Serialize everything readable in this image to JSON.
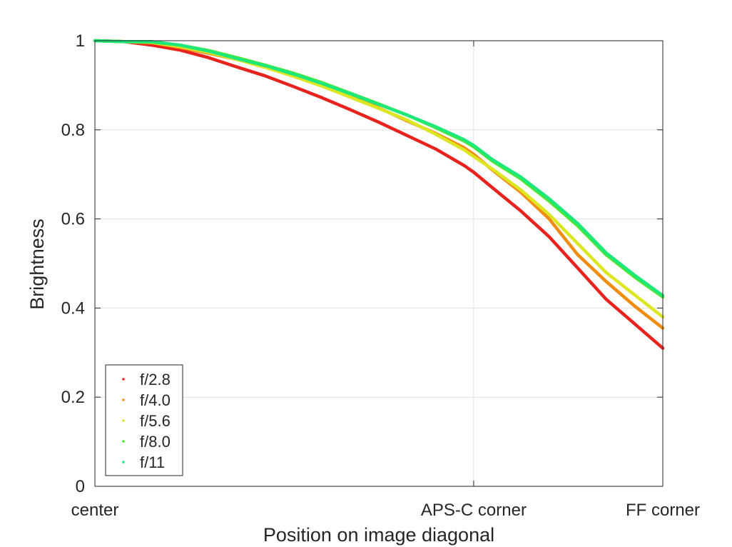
{
  "chart_data": {
    "type": "scatter",
    "title": "",
    "xlabel": "Position on image diagonal",
    "ylabel": "Brightness",
    "xlim": [
      0,
      1
    ],
    "ylim": [
      0,
      1
    ],
    "x_ticks": [
      {
        "value": 0,
        "label": "center"
      },
      {
        "value": 0.667,
        "label": "APS-C corner"
      },
      {
        "value": 1,
        "label": "FF corner"
      }
    ],
    "y_ticks": [
      {
        "value": 0,
        "label": "0"
      },
      {
        "value": 0.2,
        "label": "0.2"
      },
      {
        "value": 0.4,
        "label": "0.4"
      },
      {
        "value": 0.6,
        "label": "0.6"
      },
      {
        "value": 0.8,
        "label": "0.8"
      },
      {
        "value": 1,
        "label": "1"
      }
    ],
    "grid": true,
    "legend_position": "bottom-left",
    "series": [
      {
        "name": "f/2.8",
        "color": "#e8231e",
        "x": [
          0,
          0.05,
          0.1,
          0.15,
          0.2,
          0.25,
          0.3,
          0.35,
          0.4,
          0.45,
          0.5,
          0.55,
          0.6,
          0.65,
          0.667,
          0.7,
          0.75,
          0.8,
          0.85,
          0.9,
          0.95,
          1.0
        ],
        "y": [
          1.0,
          0.998,
          0.99,
          0.979,
          0.962,
          0.941,
          0.921,
          0.897,
          0.872,
          0.845,
          0.817,
          0.787,
          0.757,
          0.72,
          0.705,
          0.67,
          0.618,
          0.56,
          0.49,
          0.42,
          0.365,
          0.31
        ]
      },
      {
        "name": "f/4.0",
        "color": "#f08c10",
        "x": [
          0,
          0.05,
          0.1,
          0.15,
          0.2,
          0.25,
          0.3,
          0.35,
          0.4,
          0.45,
          0.5,
          0.55,
          0.6,
          0.65,
          0.667,
          0.7,
          0.75,
          0.8,
          0.85,
          0.9,
          0.95,
          1.0
        ],
        "y": [
          1.0,
          0.998,
          0.996,
          0.985,
          0.972,
          0.958,
          0.944,
          0.924,
          0.902,
          0.877,
          0.849,
          0.82,
          0.792,
          0.76,
          0.745,
          0.71,
          0.66,
          0.6,
          0.52,
          0.46,
          0.405,
          0.355
        ]
      },
      {
        "name": "f/5.6",
        "color": "#dde623",
        "x": [
          0,
          0.05,
          0.1,
          0.15,
          0.2,
          0.25,
          0.3,
          0.35,
          0.4,
          0.45,
          0.5,
          0.55,
          0.6,
          0.65,
          0.667,
          0.7,
          0.75,
          0.8,
          0.85,
          0.9,
          0.95,
          1.0
        ],
        "y": [
          1.0,
          0.998,
          0.996,
          0.987,
          0.974,
          0.958,
          0.94,
          0.92,
          0.898,
          0.873,
          0.848,
          0.822,
          0.79,
          0.755,
          0.74,
          0.712,
          0.665,
          0.61,
          0.545,
          0.48,
          0.43,
          0.38
        ]
      },
      {
        "name": "f/8.0",
        "color": "#4fe62a",
        "x": [
          0,
          0.05,
          0.1,
          0.15,
          0.2,
          0.25,
          0.3,
          0.35,
          0.4,
          0.45,
          0.5,
          0.55,
          0.6,
          0.65,
          0.667,
          0.7,
          0.75,
          0.8,
          0.85,
          0.9,
          0.95,
          1.0
        ],
        "y": [
          1.0,
          0.998,
          0.997,
          0.99,
          0.978,
          0.962,
          0.945,
          0.927,
          0.906,
          0.882,
          0.858,
          0.833,
          0.805,
          0.775,
          0.762,
          0.73,
          0.69,
          0.64,
          0.585,
          0.52,
          0.47,
          0.425
        ]
      },
      {
        "name": "f/11",
        "color": "#1fe87a",
        "x": [
          0,
          0.05,
          0.1,
          0.15,
          0.2,
          0.25,
          0.3,
          0.35,
          0.4,
          0.45,
          0.5,
          0.55,
          0.6,
          0.65,
          0.667,
          0.7,
          0.75,
          0.8,
          0.85,
          0.9,
          0.95,
          1.0
        ],
        "y": [
          1.0,
          0.998,
          0.998,
          0.99,
          0.977,
          0.96,
          0.944,
          0.925,
          0.904,
          0.881,
          0.857,
          0.833,
          0.807,
          0.778,
          0.765,
          0.733,
          0.694,
          0.645,
          0.59,
          0.524,
          0.474,
          0.428
        ]
      }
    ]
  }
}
